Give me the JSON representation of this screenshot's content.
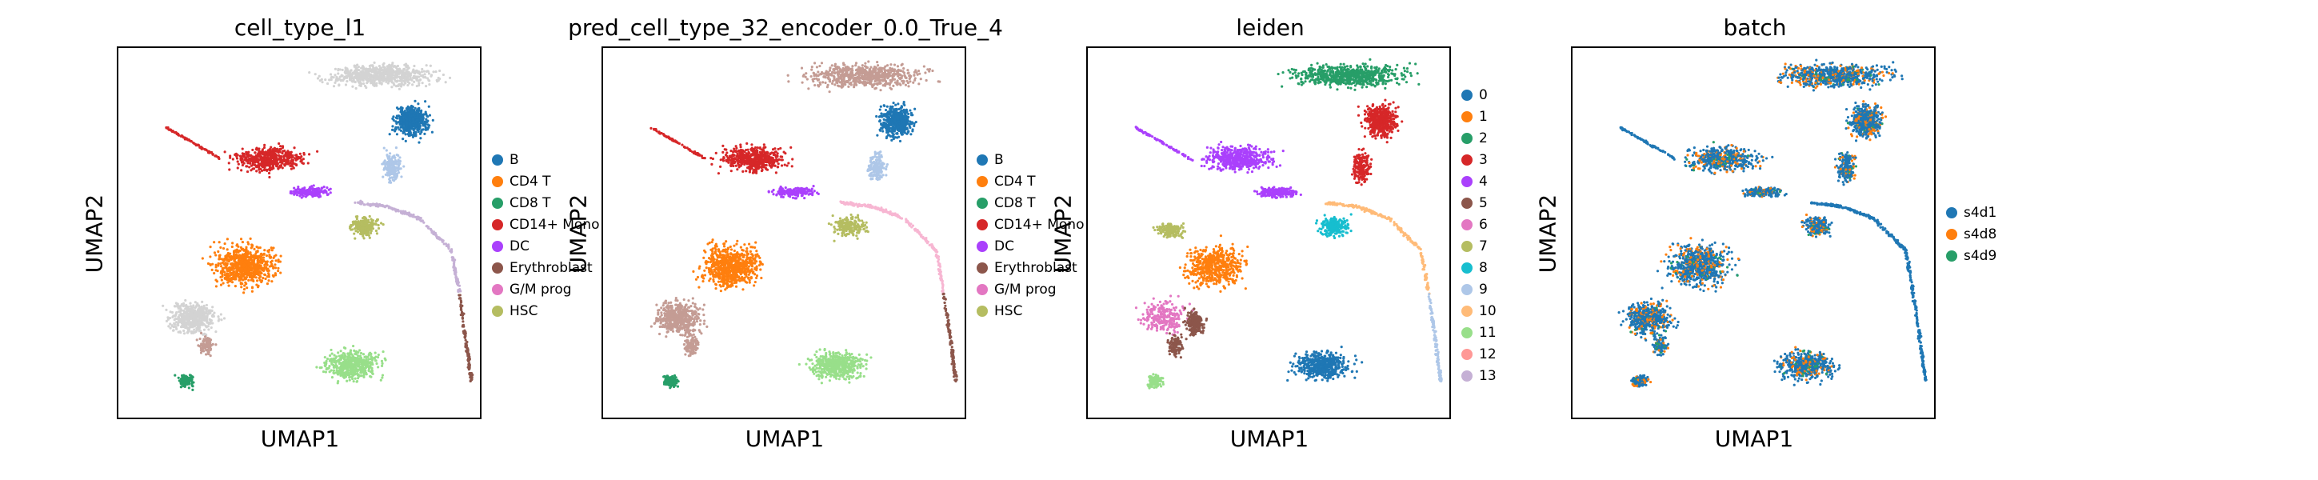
{
  "palette": {
    "B": "#1f77b4",
    "CD4 T": "#ff7f0e",
    "CD8 T": "#279e68",
    "CD14+ Mono": "#d62728",
    "DC": "#aa40fc",
    "Erythroblast": "#8c564b",
    "G/M prog": "#e377c2",
    "HSC": "#b5bd61",
    "0": "#1f77b4",
    "1": "#ff7f0e",
    "2": "#279e68",
    "3": "#d62728",
    "4": "#aa40fc",
    "5": "#8c564b",
    "6": "#e377c2",
    "7": "#b5bd61",
    "8": "#17becf",
    "9": "#aec7e8",
    "10": "#ffbb78",
    "11": "#98df8a",
    "12": "#ff9896",
    "13": "#c5b0d5",
    "s4d1": "#1f77b4",
    "s4d8": "#ff7f0e",
    "s4d9": "#279e68",
    "light-gray": "#d3d3d3",
    "light-blue": "#aec7e8",
    "light-green": "#98df8a",
    "mid-green": "#77dd88",
    "rose": "#c49c94",
    "purple-pale": "#c5b0d5",
    "pink-pale": "#f7b6d2"
  },
  "chart_data": [
    {
      "type": "scatter",
      "title": "cell_type_l1",
      "xlabel": "UMAP1",
      "ylabel": "UMAP2",
      "legend": {
        "placement": "right",
        "entries": [
          "B",
          "CD4 T",
          "CD8 T",
          "CD14+ Mono",
          "DC",
          "Erythroblast",
          "G/M prog",
          "HSC"
        ]
      }
    },
    {
      "type": "scatter",
      "title": "pred_cell_type_32_encoder_0.0_True_4",
      "xlabel": "UMAP1",
      "ylabel": "UMAP2",
      "legend": {
        "placement": "right",
        "entries": [
          "B",
          "CD4 T",
          "CD8 T",
          "CD14+ Mono",
          "DC",
          "Erythroblast",
          "G/M prog",
          "HSC"
        ]
      }
    },
    {
      "type": "scatter",
      "title": "leiden",
      "xlabel": "UMAP1",
      "ylabel": "UMAP2",
      "legend": {
        "placement": "right",
        "entries": [
          "0",
          "1",
          "2",
          "3",
          "4",
          "5",
          "6",
          "7",
          "8",
          "9",
          "10",
          "11",
          "12",
          "13"
        ]
      }
    },
    {
      "type": "scatter",
      "title": "batch",
      "xlabel": "UMAP1",
      "ylabel": "UMAP2",
      "legend": {
        "placement": "right",
        "entries": [
          "s4d1",
          "s4d8",
          "s4d9"
        ]
      }
    }
  ]
}
